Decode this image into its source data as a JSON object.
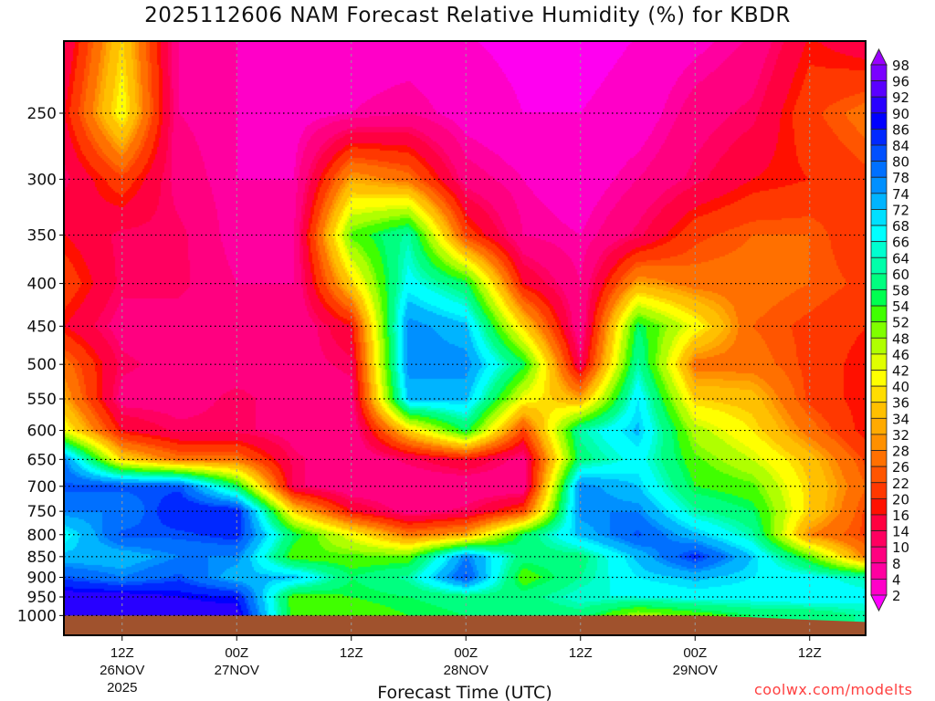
{
  "title": "2025112606 NAM Forecast Relative Humidity (%) for KBDR",
  "watermark": "coolwx.com/modelts",
  "chart_data": {
    "type": "heatmap",
    "title": "2025112606 NAM Forecast Relative Humidity (%) for KBDR",
    "xlabel": "Forecast Time (UTC)",
    "ylabel": "",
    "x_unit": "forecast hour from 2025112606",
    "xlim": [
      0,
      84
    ],
    "ylim": [
      205,
      1055
    ],
    "y_scale": "log-pressure (hPa), inverted",
    "grid": true,
    "x_ticks": [
      {
        "hour": 6,
        "line1": "12Z",
        "line2": "26NOV",
        "line3": "2025"
      },
      {
        "hour": 18,
        "line1": "00Z",
        "line2": "27NOV",
        "line3": ""
      },
      {
        "hour": 30,
        "line1": "12Z",
        "line2": "",
        "line3": ""
      },
      {
        "hour": 42,
        "line1": "00Z",
        "line2": "28NOV",
        "line3": ""
      },
      {
        "hour": 54,
        "line1": "12Z",
        "line2": "",
        "line3": ""
      },
      {
        "hour": 66,
        "line1": "00Z",
        "line2": "29NOV",
        "line3": ""
      },
      {
        "hour": 78,
        "line1": "12Z",
        "line2": "",
        "line3": ""
      }
    ],
    "y_ticks": [
      "250",
      "300",
      "350",
      "400",
      "450",
      "500",
      "550",
      "600",
      "650",
      "700",
      "750",
      "800",
      "850",
      "900",
      "950",
      "1000"
    ],
    "times": [
      0,
      6,
      12,
      18,
      24,
      30,
      36,
      42,
      48,
      54,
      60,
      66,
      72,
      78,
      84
    ],
    "levels": [
      200,
      250,
      300,
      350,
      400,
      450,
      500,
      550,
      600,
      650,
      700,
      750,
      800,
      850,
      900,
      950,
      1000
    ],
    "rh": [
      [
        15,
        20,
        15,
        20,
        25,
        20,
        30,
        35,
        45,
        80,
        85,
        80,
        70,
        75,
        85,
        95,
        95
      ],
      [
        40,
        45,
        25,
        15,
        15,
        12,
        15,
        12,
        20,
        40,
        85,
        80,
        85,
        75,
        80,
        95,
        95
      ],
      [
        10,
        10,
        12,
        15,
        15,
        12,
        12,
        12,
        15,
        30,
        85,
        90,
        85,
        80,
        85,
        92,
        95
      ],
      [
        8,
        8,
        8,
        8,
        10,
        12,
        12,
        15,
        15,
        30,
        60,
        90,
        88,
        80,
        75,
        90,
        95
      ],
      [
        6,
        6,
        8,
        10,
        10,
        10,
        12,
        12,
        12,
        15,
        15,
        40,
        60,
        55,
        75,
        55,
        55
      ],
      [
        5,
        8,
        35,
        55,
        40,
        20,
        15,
        12,
        10,
        10,
        10,
        20,
        45,
        55,
        60,
        58,
        55
      ],
      [
        5,
        10,
        30,
        65,
        70,
        80,
        80,
        75,
        40,
        15,
        10,
        12,
        30,
        55,
        65,
        60,
        58
      ],
      [
        4,
        6,
        12,
        25,
        60,
        75,
        80,
        75,
        60,
        20,
        10,
        15,
        35,
        80,
        85,
        62,
        60
      ],
      [
        3,
        4,
        8,
        10,
        20,
        40,
        60,
        45,
        25,
        12,
        10,
        25,
        60,
        62,
        55,
        62,
        60
      ],
      [
        3,
        4,
        5,
        8,
        10,
        10,
        15,
        35,
        65,
        62,
        80,
        80,
        75,
        62,
        64,
        68,
        62
      ],
      [
        4,
        5,
        10,
        15,
        35,
        60,
        65,
        72,
        75,
        70,
        74,
        80,
        85,
        75,
        72,
        68,
        50
      ],
      [
        6,
        12,
        15,
        25,
        30,
        45,
        30,
        40,
        50,
        55,
        58,
        65,
        75,
        88,
        75,
        70,
        55
      ],
      [
        10,
        15,
        20,
        28,
        30,
        28,
        30,
        38,
        42,
        48,
        55,
        60,
        65,
        74,
        72,
        70,
        60
      ],
      [
        20,
        25,
        22,
        28,
        28,
        25,
        25,
        25,
        30,
        38,
        40,
        40,
        32,
        55,
        70,
        72,
        60
      ],
      [
        15,
        30,
        25,
        22,
        25,
        22,
        20,
        20,
        20,
        25,
        28,
        25,
        25,
        30,
        65,
        70,
        65
      ]
    ],
    "surface_pressure": [
      1000,
      1000,
      1000,
      1000,
      1000,
      1000,
      1000,
      1000,
      1000,
      1000,
      1000,
      1000,
      1005,
      1012,
      1018
    ],
    "colorbar": {
      "labels": [
        "98",
        "96",
        "92",
        "90",
        "86",
        "84",
        "80",
        "78",
        "74",
        "72",
        "68",
        "66",
        "64",
        "60",
        "58",
        "54",
        "52",
        "48",
        "46",
        "42",
        "40",
        "36",
        "34",
        "32",
        "28",
        "26",
        "22",
        "20",
        "16",
        "14",
        "10",
        "8",
        "4",
        "2"
      ],
      "thresholds": [
        2,
        4,
        8,
        10,
        14,
        16,
        20,
        22,
        26,
        28,
        32,
        34,
        36,
        40,
        42,
        46,
        48,
        52,
        54,
        58,
        60,
        64,
        66,
        68,
        72,
        74,
        78,
        80,
        84,
        86,
        90,
        92,
        96,
        98
      ],
      "colors": [
        "#ff00ff",
        "#ff00f0",
        "#ff00c8",
        "#ff00a0",
        "#ff0080",
        "#ff0060",
        "#ff0040",
        "#ff1000",
        "#ff3800",
        "#ff5500",
        "#ff7000",
        "#ff9000",
        "#ffaa00",
        "#ffc000",
        "#ffdd00",
        "#ffff00",
        "#e0ff00",
        "#b0ff00",
        "#80ff00",
        "#40ff00",
        "#00ff50",
        "#00ff80",
        "#00ffaa",
        "#00ffd0",
        "#00ffff",
        "#00e0ff",
        "#00b4ff",
        "#0090ff",
        "#0070ff",
        "#0050ff",
        "#0028ff",
        "#0000ff",
        "#2800ff",
        "#5a00ff",
        "#7a00ff",
        "#9a00ff"
      ]
    },
    "ground_color": "#a0522d"
  }
}
